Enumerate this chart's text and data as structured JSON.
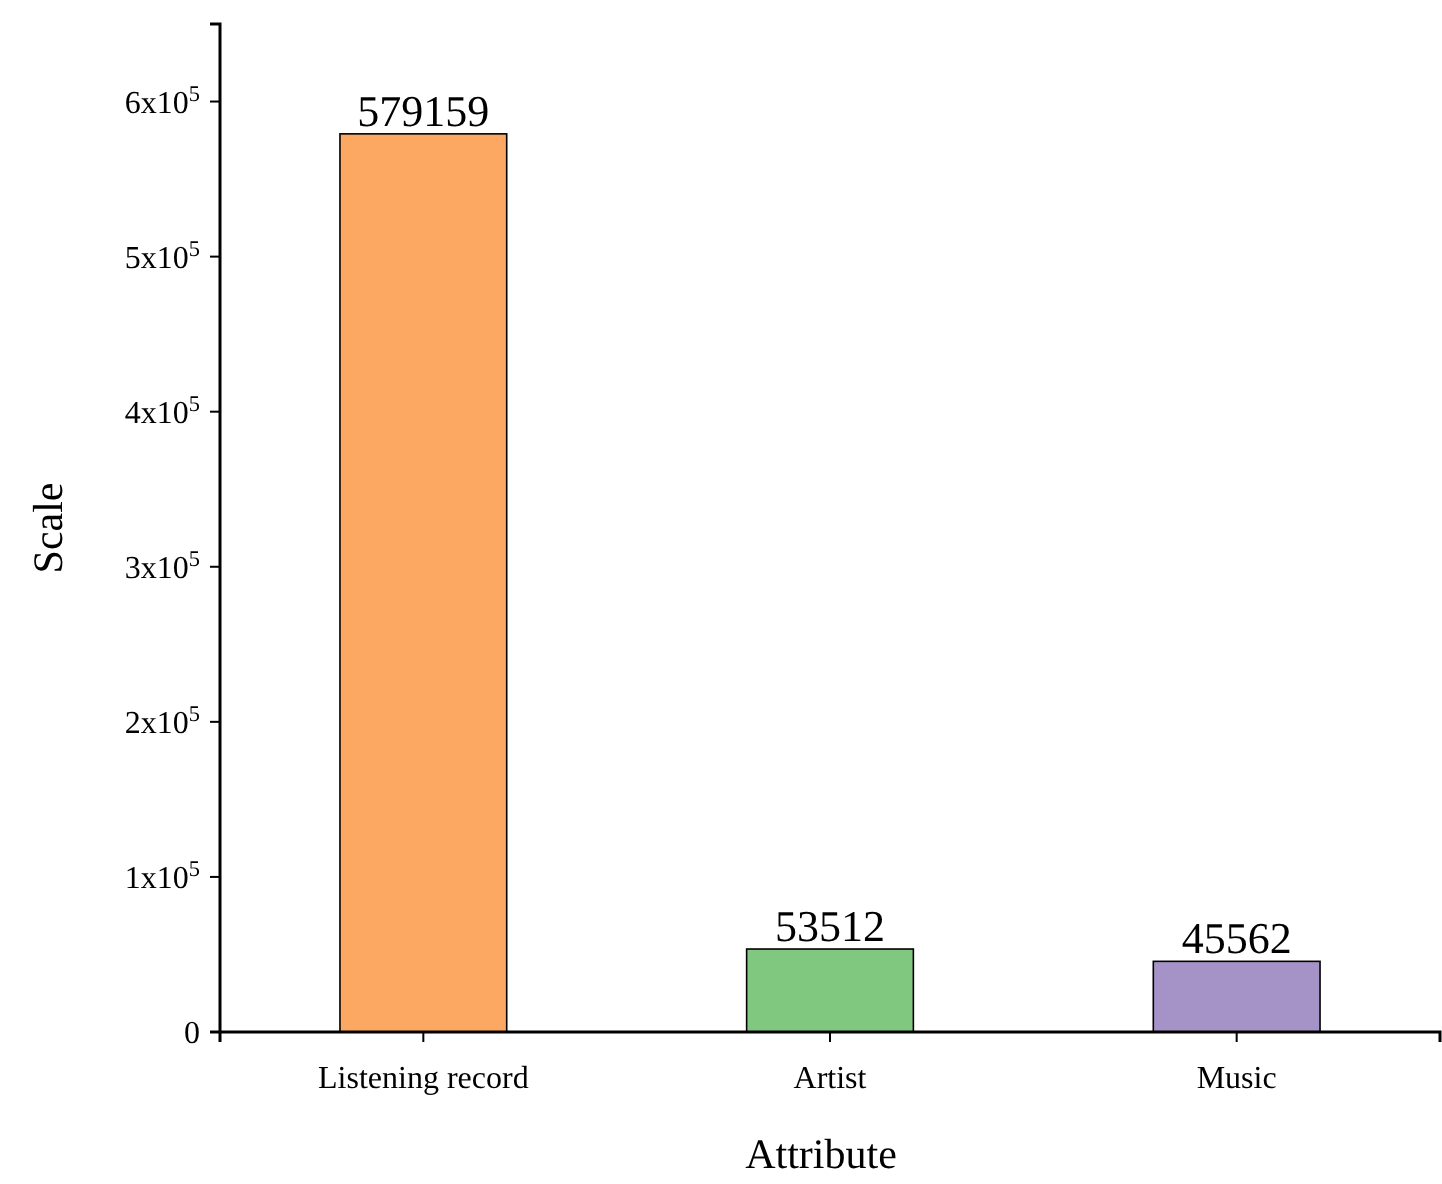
{
  "chart_data": {
    "type": "bar",
    "xlabel": "Attribute",
    "ylabel": "Scale",
    "categories": [
      "Listening record",
      "Artist",
      "Music"
    ],
    "values": [
      579159,
      53512,
      45562
    ],
    "colors": [
      "#fca862",
      "#80c880",
      "#a592c6"
    ],
    "ylim": [
      0,
      650000
    ],
    "yticks": [
      0,
      {
        "value": 100000,
        "label": "1x10$^{5}$"
      },
      {
        "value": 200000,
        "label": "2x10$^{5}$"
      },
      {
        "value": 300000,
        "label": "3x10$^{5}$"
      },
      {
        "value": 400000,
        "label": "4x10$^{5}$"
      },
      {
        "value": 500000,
        "label": "5x10$^{5}$"
      },
      {
        "value": 600000,
        "label": "6x10$^{5}$"
      }
    ],
    "data_labels": true,
    "grid": false,
    "legend": false
  }
}
